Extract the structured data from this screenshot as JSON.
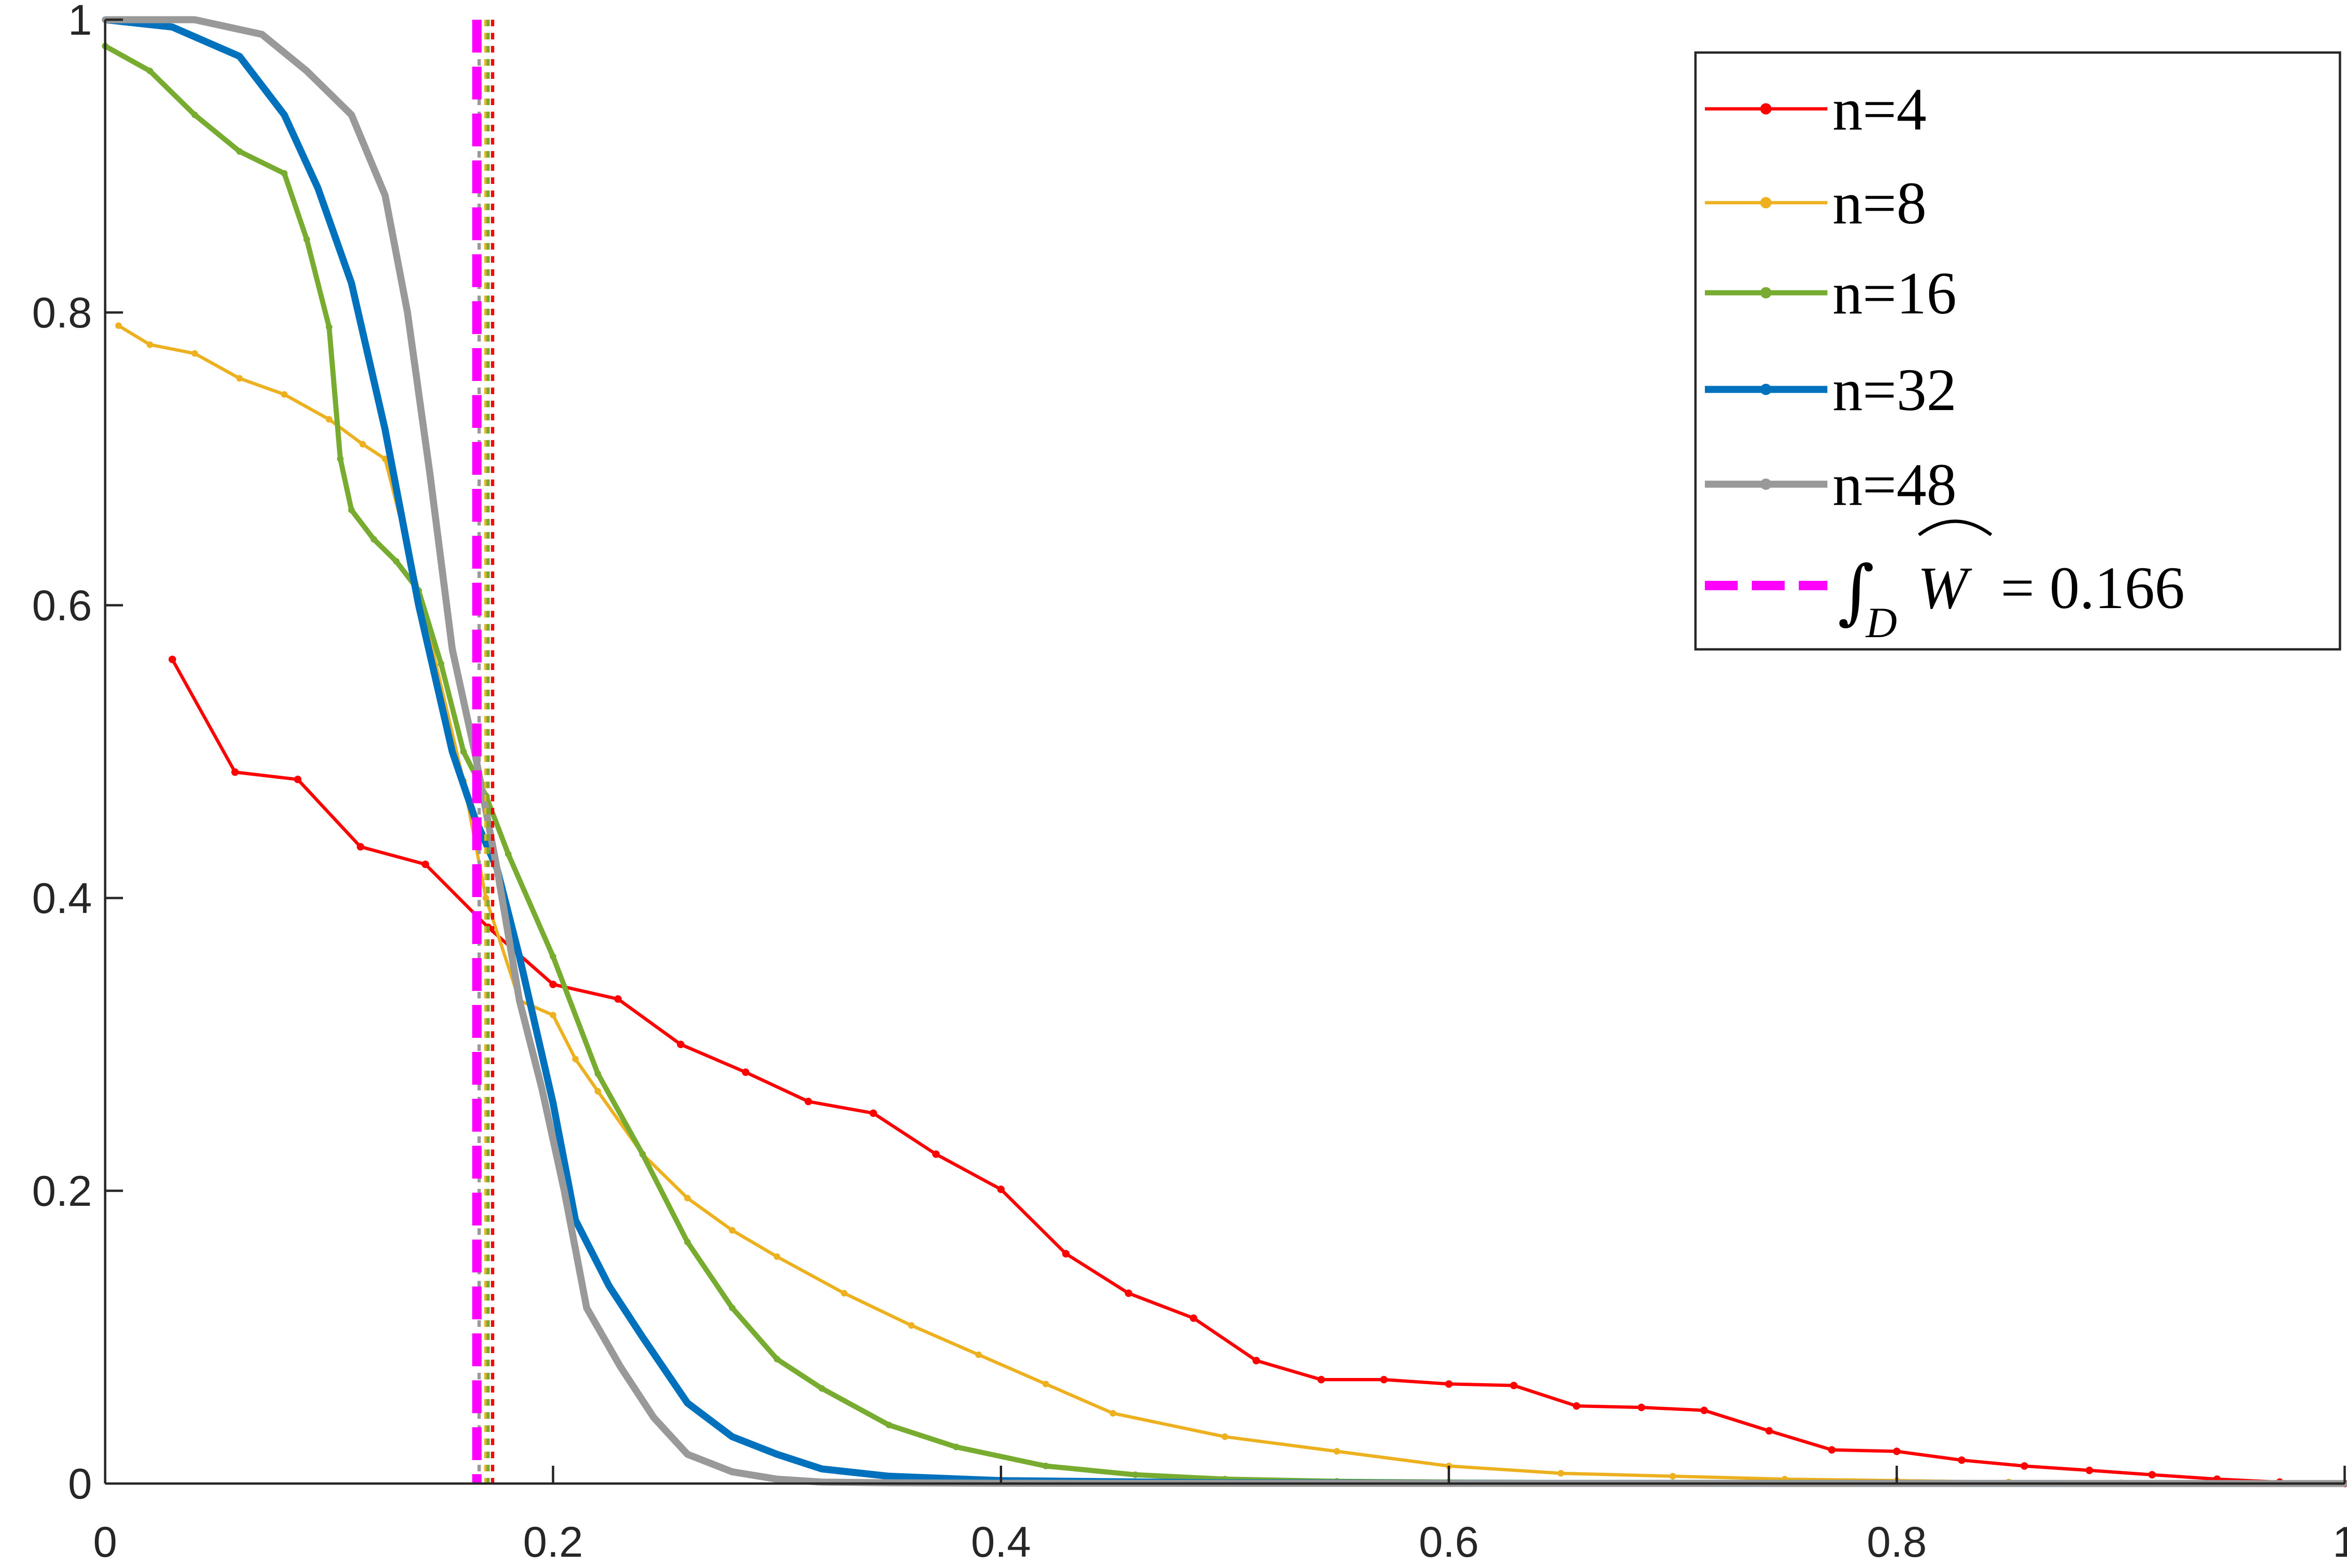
{
  "chart_data": {
    "type": "line",
    "title": "",
    "xlabel": "",
    "ylabel": "",
    "xlim": [
      0,
      1
    ],
    "ylim": [
      0,
      1
    ],
    "xticks": [
      "0",
      "0.2",
      "0.4",
      "0.6",
      "0.8",
      "1"
    ],
    "yticks": [
      "0",
      "0.2",
      "0.4",
      "0.6",
      "0.8",
      "1"
    ],
    "grid": false,
    "legend_position": "top-right",
    "series": [
      {
        "name": "n=4",
        "color": "#ff0000",
        "x": [
          0.03,
          0.058,
          0.086,
          0.114,
          0.143,
          0.171,
          0.2,
          0.229,
          0.257,
          0.286,
          0.314,
          0.343,
          0.371,
          0.4,
          0.429,
          0.457,
          0.486,
          0.514,
          0.543,
          0.571,
          0.6,
          0.629,
          0.657,
          0.686,
          0.714,
          0.743,
          0.771,
          0.8,
          0.829,
          0.857,
          0.886,
          0.914,
          0.943,
          0.971,
          1.0
        ],
        "y": [
          0.563,
          0.486,
          0.481,
          0.435,
          0.423,
          0.38,
          0.341,
          0.331,
          0.3,
          0.281,
          0.261,
          0.253,
          0.225,
          0.201,
          0.157,
          0.13,
          0.113,
          0.084,
          0.071,
          0.071,
          0.068,
          0.067,
          0.053,
          0.052,
          0.05,
          0.036,
          0.023,
          0.022,
          0.016,
          0.012,
          0.009,
          0.006,
          0.003,
          0.001,
          0.0
        ]
      },
      {
        "name": "n=8",
        "color": "#edb120",
        "x": [
          0.006,
          0.02,
          0.04,
          0.06,
          0.08,
          0.1,
          0.115,
          0.125,
          0.14,
          0.16,
          0.17,
          0.185,
          0.2,
          0.21,
          0.22,
          0.24,
          0.26,
          0.28,
          0.3,
          0.33,
          0.36,
          0.39,
          0.42,
          0.45,
          0.5,
          0.55,
          0.6,
          0.65,
          0.7,
          0.75,
          0.8,
          0.85,
          0.9,
          0.95,
          1.0
        ],
        "y": [
          0.791,
          0.778,
          0.772,
          0.755,
          0.744,
          0.727,
          0.71,
          0.7,
          0.61,
          0.48,
          0.4,
          0.33,
          0.32,
          0.29,
          0.268,
          0.225,
          0.195,
          0.173,
          0.155,
          0.13,
          0.108,
          0.088,
          0.068,
          0.048,
          0.032,
          0.022,
          0.012,
          0.007,
          0.005,
          0.003,
          0.002,
          0.001,
          0.0005,
          0.0002,
          0.0
        ]
      },
      {
        "name": "n=16",
        "color": "#77ac30",
        "x": [
          0.0,
          0.02,
          0.04,
          0.06,
          0.08,
          0.09,
          0.1,
          0.105,
          0.11,
          0.12,
          0.13,
          0.14,
          0.15,
          0.16,
          0.17,
          0.18,
          0.2,
          0.22,
          0.24,
          0.26,
          0.28,
          0.3,
          0.32,
          0.35,
          0.38,
          0.42,
          0.46,
          0.5,
          0.55,
          0.6,
          0.7,
          0.8,
          0.9,
          1.0
        ],
        "y": [
          0.982,
          0.965,
          0.935,
          0.91,
          0.895,
          0.85,
          0.79,
          0.7,
          0.665,
          0.645,
          0.63,
          0.61,
          0.56,
          0.5,
          0.47,
          0.43,
          0.36,
          0.28,
          0.225,
          0.165,
          0.12,
          0.085,
          0.065,
          0.04,
          0.025,
          0.012,
          0.006,
          0.003,
          0.0015,
          0.001,
          0.0005,
          0.0002,
          0.0001,
          0.0
        ]
      },
      {
        "name": "n=32",
        "color": "#0072bd",
        "x": [
          0.0,
          0.03,
          0.06,
          0.08,
          0.095,
          0.11,
          0.125,
          0.14,
          0.155,
          0.165,
          0.175,
          0.185,
          0.2,
          0.21,
          0.225,
          0.24,
          0.26,
          0.28,
          0.3,
          0.32,
          0.35,
          0.4,
          0.5,
          0.6,
          0.8,
          1.0
        ],
        "y": [
          1.0,
          0.995,
          0.975,
          0.935,
          0.885,
          0.82,
          0.72,
          0.6,
          0.5,
          0.455,
          0.42,
          0.36,
          0.26,
          0.18,
          0.135,
          0.1,
          0.055,
          0.032,
          0.02,
          0.01,
          0.005,
          0.002,
          0.0005,
          0.0002,
          0.0001,
          0.0
        ]
      },
      {
        "name": "n=48",
        "color": "#999999",
        "x": [
          0.0,
          0.04,
          0.07,
          0.09,
          0.11,
          0.125,
          0.135,
          0.145,
          0.155,
          0.165,
          0.175,
          0.185,
          0.195,
          0.205,
          0.215,
          0.23,
          0.245,
          0.26,
          0.28,
          0.3,
          0.32,
          0.35,
          0.4,
          0.6,
          1.0
        ],
        "y": [
          1.0,
          1.0,
          0.99,
          0.965,
          0.935,
          0.88,
          0.8,
          0.69,
          0.57,
          0.5,
          0.42,
          0.33,
          0.27,
          0.2,
          0.12,
          0.08,
          0.045,
          0.02,
          0.008,
          0.003,
          0.001,
          0.0005,
          0.0002,
          0.0001,
          0.0
        ]
      }
    ],
    "vertical_lines": [
      {
        "name": "∫D Ŵ = 0.166",
        "x": 0.166,
        "color": "#ff00ff",
        "style": "dashed"
      },
      {
        "name": "",
        "x": 0.167,
        "color": "#999999",
        "style": "dotted"
      },
      {
        "name": "",
        "x": 0.171,
        "color": "#77ac30",
        "style": "dotted"
      },
      {
        "name": "",
        "x": 0.17,
        "color": "#edb120",
        "style": "dotted"
      },
      {
        "name": "",
        "x": 0.173,
        "color": "#ff0000",
        "style": "dotted"
      }
    ],
    "legend": {
      "entries": [
        "n=4",
        "n=8",
        "n=16",
        "n=32",
        "n=48"
      ],
      "integral_label": "= 0.166"
    }
  }
}
